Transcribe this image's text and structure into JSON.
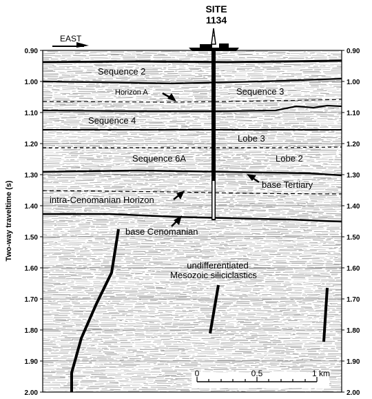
{
  "site": {
    "name": "SITE",
    "number": "1134"
  },
  "direction": "EAST",
  "axis": {
    "label": "Two-way traveltime (s)",
    "min": 0.9,
    "max": 2.0,
    "ticks": [
      "0.90",
      "1.00",
      "1.10",
      "1.20",
      "1.30",
      "1.40",
      "1.50",
      "1.60",
      "1.70",
      "1.80",
      "1.90",
      "2.00"
    ]
  },
  "labels": {
    "sequence2": "Sequence 2",
    "horizonA": "Horizon A",
    "sequence3": "Sequence 3",
    "sequence4": "Sequence 4",
    "lobe3": "Lobe 3",
    "sequence6a": "Sequence 6A",
    "lobe2": "Lobe 2",
    "baseTertiary": "base Tertiary",
    "intraCenomanian": "intra-Cenomanian Horizon",
    "baseCenomanian": "base Cenomanian",
    "undiff1": "undifferentiated",
    "undiff2": "Mesozoic siliciclastics"
  },
  "scale": {
    "labels": [
      "0",
      "0.5",
      "1 km"
    ]
  },
  "colors": {
    "line": "#000000",
    "background": "#ffffff",
    "reflector": "#a8a8a8"
  }
}
